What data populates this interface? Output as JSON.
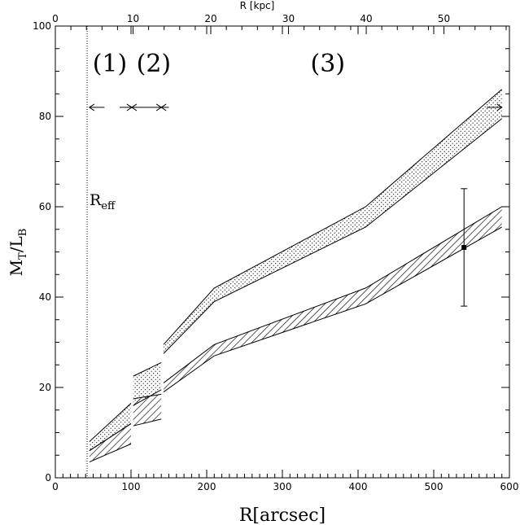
{
  "chart_data": {
    "type": "area",
    "xlabel": "R[arcsec]",
    "ylabel_main": "M",
    "ylabel_sub1": "T",
    "ylabel_mid": "/L",
    "ylabel_sub2": "B",
    "top_axis_label": "R [kpc]",
    "xlim": [
      0,
      600
    ],
    "ylim": [
      0,
      100
    ],
    "x_ticks": [
      "0",
      "100",
      "200",
      "300",
      "400",
      "500",
      "600"
    ],
    "y_ticks": [
      "0",
      "20",
      "40",
      "60",
      "80",
      "100"
    ],
    "top_ticks": [
      "10",
      "20",
      "30",
      "40",
      "50"
    ],
    "top_tick_arcsec_per_kpc": 10.27,
    "r_eff_arcsec": 42,
    "r_eff_label_main": "R",
    "r_eff_label_sub": "eff",
    "regions": [
      {
        "label": "(1)",
        "x": 72
      },
      {
        "label": "(2)",
        "x": 130
      },
      {
        "label": "(3)",
        "x": 360
      }
    ],
    "region_arrow_y": 82,
    "series": [
      {
        "style": "dotted",
        "segments": [
          {
            "x": [
              45,
              100
            ],
            "upper": [
              8,
              16.5
            ],
            "lower": [
              6,
              12
            ]
          },
          {
            "x": [
              103,
              140
            ],
            "upper": [
              22.5,
              25.5
            ],
            "lower": [
              16,
              19.5
            ]
          },
          {
            "x": [
              143,
              210,
              410,
              590
            ],
            "upper": [
              29.5,
              42,
              60,
              86
            ],
            "lower": [
              27.5,
              39,
              55.5,
              79.5
            ]
          }
        ]
      },
      {
        "style": "hatched",
        "segments": [
          {
            "x": [
              45,
              100
            ],
            "upper": [
              6,
              12
            ],
            "lower": [
              3.5,
              7.5
            ]
          },
          {
            "x": [
              103,
              140
            ],
            "upper": [
              17.5,
              18.5
            ],
            "lower": [
              11.5,
              13
            ]
          },
          {
            "x": [
              143,
              210,
              410,
              590
            ],
            "upper": [
              21,
              29.5,
              42,
              60
            ],
            "lower": [
              19,
              27,
              38.5,
              55.5
            ]
          }
        ]
      }
    ],
    "point": {
      "x": 540,
      "y": 51,
      "yerr_low": 38,
      "yerr_high": 64
    }
  }
}
